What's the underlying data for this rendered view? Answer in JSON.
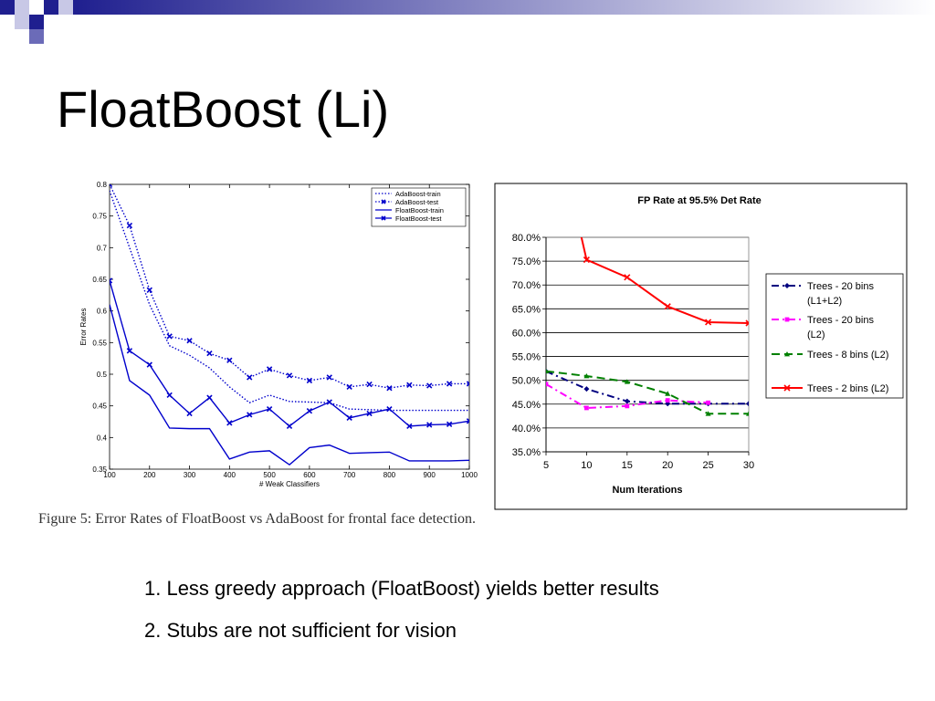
{
  "title": "FloatBoost (Li)",
  "colors": {
    "deco_dark": "#1f1f8f",
    "deco_mid": "#6b6bb8",
    "deco_light": "#c8c8e6"
  },
  "caption": "Figure 5: Error Rates of FloatBoost vs AdaBoost for frontal face detection.",
  "bullets": [
    "1. Less greedy approach (FloatBoost) yields better results",
    "2. Stubs are not sufficient for vision"
  ],
  "chart_data": [
    {
      "type": "line",
      "title": "",
      "xlabel": "# Weak Classifiers",
      "ylabel": "Error Rates",
      "xlim": [
        100,
        1000
      ],
      "ylim": [
        0.35,
        0.8
      ],
      "xticks": [
        "100",
        "200",
        "300",
        "400",
        "500",
        "600",
        "700",
        "800",
        "900",
        "1000"
      ],
      "yticks": [
        "0.35",
        "0.4",
        "0.45",
        "0.5",
        "0.55",
        "0.6",
        "0.65",
        "0.7",
        "0.75",
        "0.8"
      ],
      "legend": "top-right",
      "grid": false,
      "series": [
        {
          "name": "AdaBoost-train",
          "color": "#0000cc",
          "style": "dotted",
          "marker": "none",
          "x": [
            100,
            150,
            200,
            250,
            300,
            350,
            400,
            450,
            500,
            550,
            600,
            650,
            700,
            750,
            800,
            850,
            900,
            950,
            1000
          ],
          "y": [
            0.79,
            0.7,
            0.61,
            0.545,
            0.53,
            0.51,
            0.48,
            0.455,
            0.467,
            0.457,
            0.456,
            0.455,
            0.445,
            0.444,
            0.443,
            0.443,
            0.443,
            0.443,
            0.443
          ]
        },
        {
          "name": "AdaBoost-test",
          "color": "#0000cc",
          "style": "dotted",
          "marker": "x",
          "x": [
            100,
            150,
            200,
            250,
            300,
            350,
            400,
            450,
            500,
            550,
            600,
            650,
            700,
            750,
            800,
            850,
            900,
            950,
            1000
          ],
          "y": [
            0.8,
            0.735,
            0.633,
            0.56,
            0.553,
            0.533,
            0.522,
            0.495,
            0.508,
            0.498,
            0.49,
            0.495,
            0.48,
            0.484,
            0.478,
            0.483,
            0.482,
            0.485,
            0.485
          ]
        },
        {
          "name": "FloatBoost-train",
          "color": "#0000cc",
          "style": "solid",
          "marker": "none",
          "x": [
            100,
            150,
            200,
            250,
            300,
            350,
            400,
            450,
            500,
            550,
            600,
            650,
            700,
            750,
            800,
            850,
            900,
            950,
            1000
          ],
          "y": [
            0.61,
            0.49,
            0.467,
            0.415,
            0.414,
            0.414,
            0.366,
            0.377,
            0.379,
            0.357,
            0.384,
            0.388,
            0.375,
            0.376,
            0.377,
            0.363,
            0.363,
            0.363,
            0.364
          ]
        },
        {
          "name": "FloatBoost-test",
          "color": "#0000cc",
          "style": "solid",
          "marker": "x",
          "x": [
            100,
            150,
            200,
            250,
            300,
            350,
            400,
            450,
            500,
            550,
            600,
            650,
            700,
            750,
            800,
            850,
            900,
            950,
            1000
          ],
          "y": [
            0.648,
            0.537,
            0.515,
            0.467,
            0.438,
            0.463,
            0.423,
            0.436,
            0.445,
            0.418,
            0.442,
            0.456,
            0.431,
            0.438,
            0.445,
            0.418,
            0.42,
            0.421,
            0.426
          ]
        }
      ]
    },
    {
      "type": "line",
      "title": "FP Rate at 95.5% Det Rate",
      "xlabel": "Num Iterations",
      "ylabel": "",
      "xlim": [
        5,
        30
      ],
      "ylim": [
        35,
        80
      ],
      "xticks": [
        "5",
        "10",
        "15",
        "20",
        "25",
        "30"
      ],
      "yticks": [
        "35.0%",
        "40.0%",
        "45.0%",
        "50.0%",
        "55.0%",
        "60.0%",
        "65.0%",
        "70.0%",
        "75.0%",
        "80.0%"
      ],
      "legend": "right",
      "grid": true,
      "series": [
        {
          "name": "Trees - 20 bins (L1+L2)",
          "label_lines": [
            "Trees - 20 bins",
            "(L1+L2)"
          ],
          "color": "#000080",
          "style": "dashdot",
          "marker": "diamond",
          "x": [
            5,
            10,
            15,
            20,
            25,
            30
          ],
          "y": [
            51.9,
            48.2,
            45.6,
            45.1,
            45.1,
            45.1
          ]
        },
        {
          "name": "Trees - 20 bins (L2)",
          "label_lines": [
            "Trees - 20 bins",
            "(L2)"
          ],
          "color": "#ff00ff",
          "style": "dashdot",
          "marker": "square",
          "x": [
            5,
            10,
            15,
            20,
            25
          ],
          "y": [
            49.2,
            44.2,
            44.6,
            45.8,
            45.3
          ]
        },
        {
          "name": "Trees - 8 bins (L2)",
          "label_lines": [
            "Trees - 8 bins (L2)"
          ],
          "color": "#008000",
          "style": "dashed",
          "marker": "triangle",
          "x": [
            5,
            10,
            15,
            20,
            25,
            30
          ],
          "y": [
            51.9,
            50.9,
            49.7,
            47.2,
            43.0,
            43.0
          ]
        },
        {
          "name": "Trees - 2 bins (L2)",
          "label_lines": [
            "Trees - 2 bins (L2)"
          ],
          "color": "#ff0000",
          "style": "solid",
          "marker": "x",
          "x": [
            10,
            15,
            20,
            25,
            30
          ],
          "y": [
            75.3,
            71.6,
            65.5,
            62.2,
            62.0
          ]
        }
      ]
    }
  ]
}
